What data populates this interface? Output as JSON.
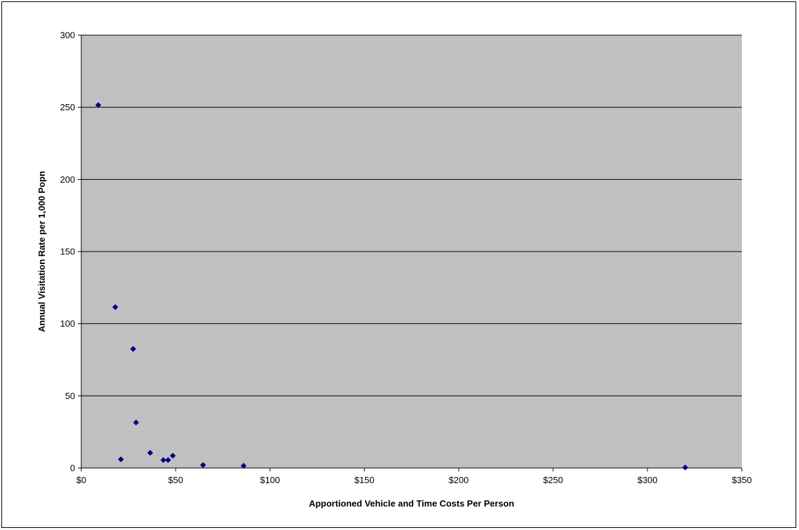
{
  "chart_data": {
    "type": "scatter",
    "title": "",
    "xlabel": "Apportioned Vehicle and Time Costs Per Person",
    "ylabel": "Annual Visitation Rate per 1,000 Popn",
    "xlim": [
      0,
      350
    ],
    "ylim": [
      0,
      300
    ],
    "x_ticks": [
      0,
      50,
      100,
      150,
      200,
      250,
      300,
      350
    ],
    "x_tick_labels": [
      "$0",
      "$50",
      "$100",
      "$150",
      "$200",
      "$250",
      "$300",
      "$350"
    ],
    "y_ticks": [
      0,
      50,
      100,
      150,
      200,
      250,
      300
    ],
    "y_tick_labels": [
      "0",
      "50",
      "100",
      "150",
      "200",
      "250",
      "300"
    ],
    "grid": {
      "horizontal": true,
      "vertical": false
    },
    "legend": "none",
    "colors": {
      "plot_background": "#c0c0c0",
      "marker": "#000080",
      "gridline": "#000000"
    },
    "marker": "diamond",
    "series": [
      {
        "points": [
          {
            "x": 9,
            "y": 251.5
          },
          {
            "x": 18,
            "y": 111.5
          },
          {
            "x": 21,
            "y": 6
          },
          {
            "x": 27.5,
            "y": 82.5
          },
          {
            "x": 29,
            "y": 31.5
          },
          {
            "x": 36.5,
            "y": 10.5
          },
          {
            "x": 43.5,
            "y": 5.5
          },
          {
            "x": 46,
            "y": 5.5
          },
          {
            "x": 48.5,
            "y": 8.5
          },
          {
            "x": 64.5,
            "y": 2
          },
          {
            "x": 86,
            "y": 1.5
          },
          {
            "x": 320,
            "y": 0.3
          }
        ]
      }
    ]
  }
}
